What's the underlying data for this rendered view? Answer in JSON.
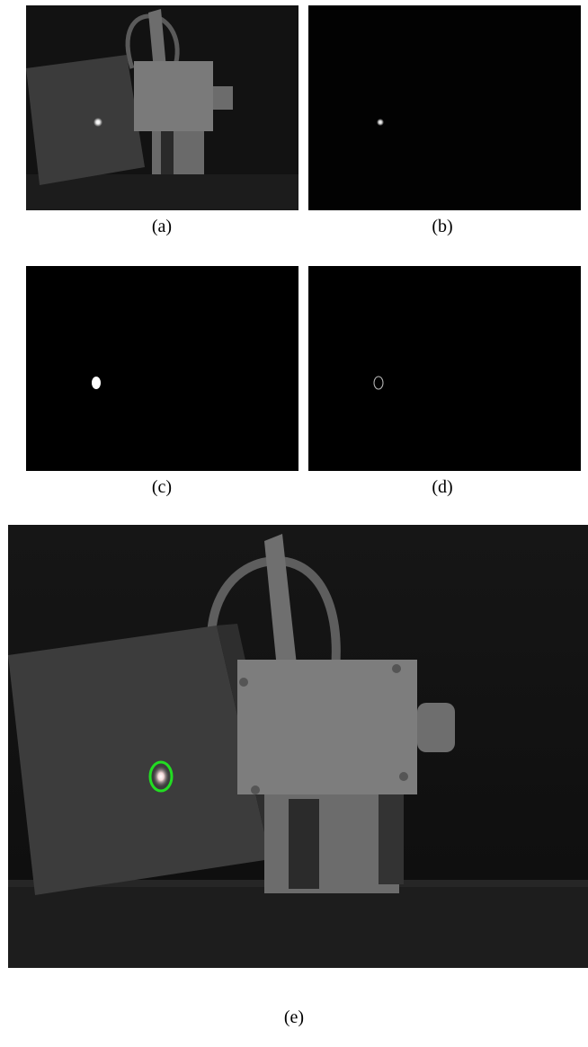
{
  "figure": {
    "panels": [
      {
        "id": "a",
        "caption": "(a)",
        "content": "grayscale photo of device with bright laser spot"
      },
      {
        "id": "b",
        "caption": "(b)",
        "content": "dark image with single bright spot"
      },
      {
        "id": "c",
        "caption": "(c)",
        "content": "binary mask of spot"
      },
      {
        "id": "d",
        "caption": "(d)",
        "content": "edge contour of spot"
      },
      {
        "id": "e",
        "caption": "(e)",
        "content": "grayscale photo with green ellipse marking spot"
      }
    ],
    "colors": {
      "background": "#ffffff",
      "panel_black": "#000000",
      "highlight_ellipse": "#22dd22"
    }
  }
}
